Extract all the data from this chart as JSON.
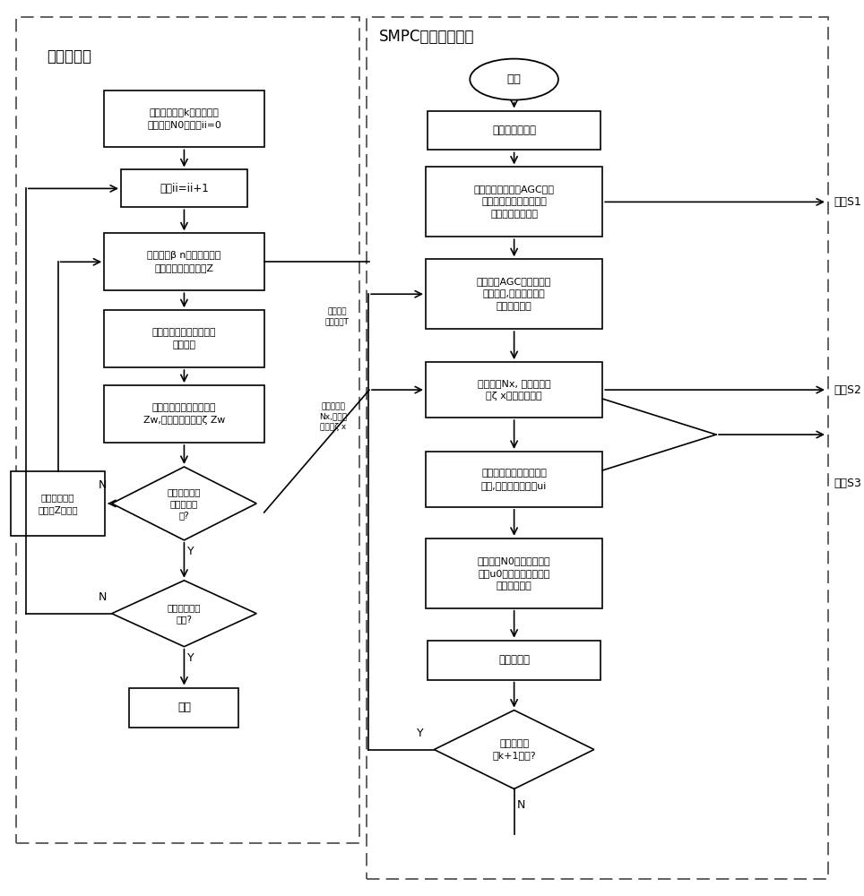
{
  "bg_color": "#ffffff",
  "smpc_title": "SMPC能量管理策略",
  "scene_title": "场景树生成",
  "step_s1": "步骤S1",
  "step_s2": "步骤S2",
  "step_s3": "步骤S3",
  "label_Y": "Y",
  "label_N": "N",
  "future_model_label": "未来需求\n功率模型T",
  "scene_node_label": "场景树节点\nNx,以及节\n点概率ζ x",
  "r_start": "开始",
  "r_init": "初始化系统参数",
  "r_model": "根据火电机组响应AGC指令\n的历史数据建立混合储能\n未来需求功率模型",
  "r_sample": "采样当前AGC指令及火电\n机组功率,得到储能当前\n时刻需求功率",
  "r_select": "选择节点Nx, 计算节点概\n率ζ x并生成场景树",
  "r_optimal": "根据提出的随机模型预测\n策略,求得最优控制量ui",
  "r_decision": "与根节点N0相关联的决策\n向量u0作为混合储能输入\n进行功率补偿",
  "r_update": "更新状态量",
  "r_diamond": "下一采样时\n刻k+1到来?",
  "l_n0": "对于当前时刻k，其需求功\n率为节点N0；设置ii=0",
  "l_ii": "节点ii=ii+1",
  "l_beta": "根据阈值β n及当前功率需\n求得到候选节点集合Z",
  "l_reweight": "重新计算候选节点权重及\n累加权重",
  "l_zw": "由随机分布函数得到节点\nZw,并计算节点概率ζ Zw",
  "l_dia1": "核节点所有子\n节点选择完\n毕?",
  "l_dia2": "所有节点选择\n完毕?",
  "l_end": "结束",
  "l_remove": "将选择的节点\n从集合Z中除去"
}
